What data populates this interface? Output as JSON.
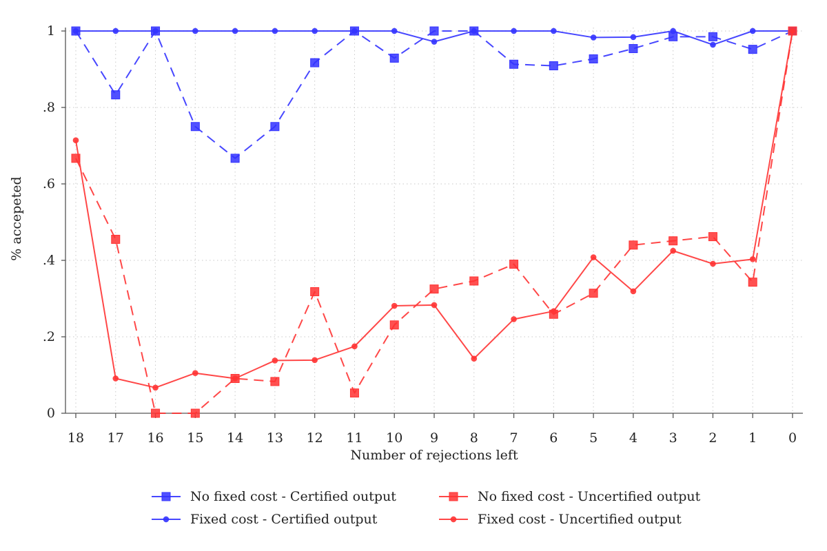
{
  "chart_data": {
    "type": "line",
    "title": "",
    "xlabel": "Number of rejections left",
    "ylabel": "% accepeted",
    "x": [
      18,
      17,
      16,
      15,
      14,
      13,
      12,
      11,
      10,
      9,
      8,
      7,
      6,
      5,
      4,
      3,
      2,
      1,
      0
    ],
    "x_tick_labels": [
      "18",
      "17",
      "16",
      "15",
      "14",
      "13",
      "12",
      "11",
      "10",
      "9",
      "8",
      "7",
      "6",
      "5",
      "4",
      "3",
      "2",
      "1",
      "0"
    ],
    "x_reversed": true,
    "ylim": [
      0,
      1
    ],
    "y_ticks": [
      0,
      0.2,
      0.4,
      0.6,
      0.8,
      1
    ],
    "y_tick_labels": [
      "0",
      ".2",
      ".4",
      ".6",
      ".8",
      "1"
    ],
    "grid": "dotted",
    "legend_position": "bottom",
    "series": [
      {
        "name": "No fixed cost - Certified output",
        "color": "#3333ff",
        "marker": "square",
        "dash": "dashed",
        "values": [
          1.0,
          0.833,
          1.0,
          0.75,
          0.667,
          0.75,
          0.917,
          1.0,
          0.929,
          1.0,
          1.0,
          0.913,
          0.909,
          0.927,
          0.954,
          0.985,
          0.985,
          0.952,
          1.0
        ]
      },
      {
        "name": "Fixed cost - Certified output",
        "color": "#3333ff",
        "marker": "circle",
        "dash": "solid",
        "values": [
          1.0,
          1.0,
          1.0,
          1.0,
          1.0,
          1.0,
          1.0,
          1.0,
          1.0,
          0.972,
          1.0,
          1.0,
          1.0,
          0.983,
          0.984,
          1.0,
          0.964,
          1.0,
          1.0
        ]
      },
      {
        "name": "No fixed cost - Uncertified output",
        "color": "#ff3333",
        "marker": "square",
        "dash": "dashed",
        "values": [
          0.667,
          0.455,
          0.0,
          0.0,
          0.091,
          0.083,
          0.318,
          0.053,
          0.231,
          0.325,
          0.346,
          0.39,
          0.259,
          0.314,
          0.44,
          0.451,
          0.462,
          0.343,
          1.0
        ]
      },
      {
        "name": "Fixed cost - Uncertified output",
        "color": "#ff3333",
        "marker": "circle",
        "dash": "solid",
        "values": [
          0.714,
          0.091,
          0.067,
          0.105,
          0.091,
          0.138,
          0.139,
          0.175,
          0.281,
          0.283,
          0.143,
          0.246,
          0.267,
          0.408,
          0.319,
          0.425,
          0.391,
          0.403,
          1.0
        ]
      }
    ]
  }
}
